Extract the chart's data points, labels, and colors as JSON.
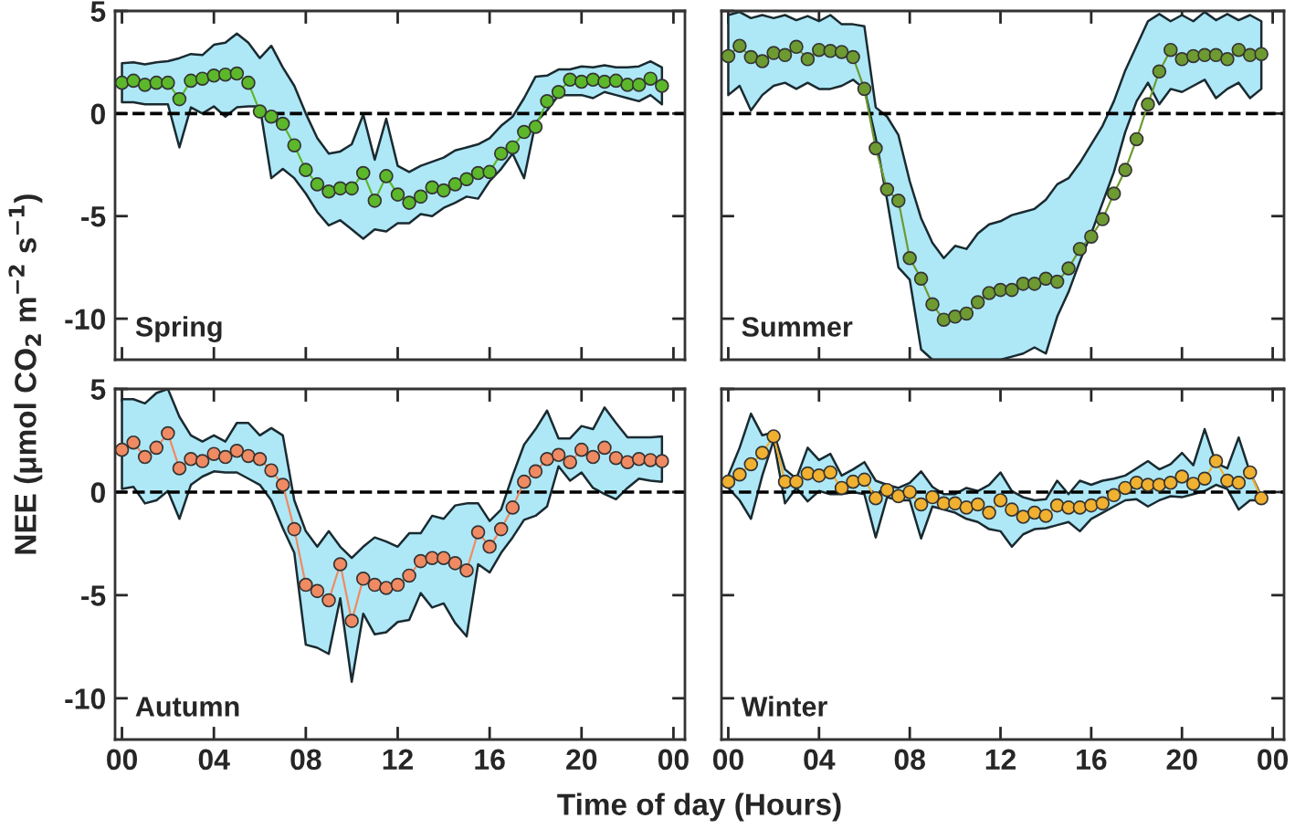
{
  "chart_data": [
    {
      "type": "line",
      "ylabel": "NEE (μmol CO$_{2}$ m$^{−2}$ s$^{−1}$)",
      "annotations": [
        "Spring"
      ],
      "tick_labels": "y",
      "marker": "circle",
      "line_style": "solid",
      "grid": false,
      "legend": false,
      "xlim": [
        -0.3,
        24.5
      ],
      "xticks": [
        {
          "value": 0,
          "label": null
        },
        {
          "value": 4,
          "label": null
        },
        {
          "value": 8,
          "label": null
        },
        {
          "value": 12,
          "label": null
        },
        {
          "value": 16,
          "label": null
        },
        {
          "value": 20,
          "label": null
        },
        {
          "value": 24,
          "label": null
        }
      ],
      "ylim": [
        -12,
        5
      ],
      "yticks": [
        5,
        0,
        -5,
        -10
      ],
      "ref_lines": [
        {
          "axis": "y",
          "value": 0,
          "color": "#000000",
          "line_style": "dashed"
        }
      ],
      "series": [
        {
          "x": [
            0,
            0.5,
            1,
            1.5,
            2,
            2.5,
            3,
            3.5,
            4,
            4.5,
            5,
            5.5,
            6,
            6.5,
            7,
            7.5,
            8,
            8.5,
            9,
            9.5,
            10,
            10.5,
            11,
            11.5,
            12,
            12.5,
            13,
            13.5,
            14,
            14.5,
            15,
            15.5,
            16,
            16.5,
            17,
            17.5,
            18,
            18.5,
            19,
            19.5,
            20,
            20.5,
            21,
            21.5,
            22,
            22.5,
            23,
            23.5
          ],
          "color": "#5cb82a",
          "values": [
            1.5,
            1.6,
            1.4,
            1.5,
            1.5,
            0.7,
            1.6,
            1.7,
            1.85,
            1.9,
            1.95,
            1.5,
            0.1,
            -0.15,
            -0.5,
            -1.55,
            -2.75,
            -3.45,
            -3.8,
            -3.65,
            -3.65,
            -2.9,
            -4.25,
            -3.05,
            -3.95,
            -4.35,
            -4.05,
            -3.6,
            -3.75,
            -3.45,
            -3.2,
            -2.9,
            -2.85,
            -1.95,
            -1.65,
            -0.9,
            -0.65,
            0.6,
            1.05,
            1.65,
            1.55,
            1.65,
            1.55,
            1.6,
            1.4,
            1.4,
            1.7,
            1.35
          ],
          "upper": [
            2.45,
            2.5,
            2.4,
            2.5,
            2.55,
            2.7,
            2.9,
            2.85,
            3.35,
            3.45,
            3.9,
            3.45,
            2.7,
            3.3,
            2.25,
            1.35,
            0,
            -1.2,
            -1.95,
            -1.85,
            -1.5,
            -0.05,
            -2.25,
            -0.25,
            -2.55,
            -2.85,
            -2.55,
            -2.35,
            -2.15,
            -1.8,
            -1.65,
            -1.5,
            -1.2,
            -0.6,
            -0.15,
            0.75,
            1.8,
            1.85,
            2.15,
            2.15,
            2.3,
            2.25,
            2.35,
            2.25,
            2.25,
            2.3,
            2.55,
            2.25
          ],
          "lower": [
            0.55,
            0.55,
            0.45,
            0.45,
            0.45,
            -1.65,
            0.3,
            0,
            0.35,
            -0.15,
            0.3,
            0.35,
            0.35,
            -3.15,
            -2.7,
            -3.15,
            -3.9,
            -4.8,
            -5.45,
            -5.2,
            -5.65,
            -6.1,
            -5.65,
            -5.75,
            -5.35,
            -5.35,
            -4.9,
            -5.0,
            -4.6,
            -4.35,
            -4.05,
            -4.15,
            -3.3,
            -2.7,
            -1.95,
            -3.15,
            -0.45,
            0.15,
            0.9,
            0.9,
            0.9,
            0.75,
            1.05,
            0.9,
            0.75,
            0.6,
            0.9,
            0.45
          ]
        }
      ]
    },
    {
      "type": "line",
      "annotations": [
        "Summer"
      ],
      "tick_labels": false,
      "marker": "circle",
      "line_style": "solid",
      "grid": false,
      "legend": false,
      "xlim": [
        -0.3,
        24.5
      ],
      "xticks": [
        {
          "value": 0,
          "label": null
        },
        {
          "value": 4,
          "label": null
        },
        {
          "value": 8,
          "label": null
        },
        {
          "value": 12,
          "label": null
        },
        {
          "value": 16,
          "label": null
        },
        {
          "value": 20,
          "label": null
        },
        {
          "value": 24,
          "label": null
        }
      ],
      "ylim": [
        -12,
        5
      ],
      "yticks": [
        5,
        0,
        -5,
        -10
      ],
      "ref_lines": [
        {
          "axis": "y",
          "value": 0,
          "color": "#000000",
          "line_style": "dashed"
        }
      ],
      "series": [
        {
          "x": [
            0,
            0.5,
            1,
            1.5,
            2,
            2.5,
            3,
            3.5,
            4,
            4.5,
            5,
            5.5,
            6,
            6.5,
            7,
            7.5,
            8,
            8.5,
            9,
            9.5,
            10,
            10.5,
            11,
            11.5,
            12,
            12.5,
            13,
            13.5,
            14,
            14.5,
            15,
            15.5,
            16,
            16.5,
            17,
            17.5,
            18,
            18.5,
            19,
            19.5,
            20,
            20.5,
            21,
            21.5,
            22,
            22.5,
            23,
            23.5
          ],
          "color": "#6e9a32",
          "values": [
            2.8,
            3.3,
            2.75,
            2.55,
            2.95,
            2.85,
            3.25,
            2.65,
            3.1,
            3.05,
            3.0,
            2.75,
            1.2,
            -1.7,
            -3.7,
            -4.25,
            -7.05,
            -8.05,
            -9.3,
            -10.05,
            -9.9,
            -9.75,
            -9.2,
            -8.75,
            -8.6,
            -8.6,
            -8.3,
            -8.3,
            -8.05,
            -8.2,
            -7.55,
            -6.6,
            -6.0,
            -5.15,
            -3.9,
            -2.75,
            -1.25,
            0.45,
            2.05,
            3.1,
            2.65,
            2.8,
            2.85,
            2.85,
            2.65,
            3.1,
            2.85,
            2.9
          ],
          "upper": [
            4.8,
            4.95,
            4.65,
            4.8,
            4.65,
            4.8,
            4.55,
            4.75,
            4.5,
            4.8,
            4.35,
            4.35,
            4.25,
            0.3,
            -0.15,
            -1.05,
            -3.3,
            -5.1,
            -6.3,
            -7.05,
            -6.45,
            -6.6,
            -5.85,
            -5.4,
            -5.25,
            -4.95,
            -4.8,
            -4.65,
            -4.2,
            -3.45,
            -3.15,
            -2.4,
            -1.5,
            -0.6,
            0.6,
            2.1,
            3.3,
            4.5,
            4.85,
            4.5,
            4.8,
            4.5,
            4.95,
            4.55,
            4.85,
            4.55,
            4.8,
            4.5
          ],
          "lower": [
            0.9,
            1.35,
            0.15,
            0.9,
            1.35,
            1.5,
            1.2,
            1.5,
            1.2,
            1.2,
            1.35,
            1.65,
            1.2,
            -1.2,
            -4.2,
            -7.5,
            -8.1,
            -11.5,
            -12,
            -12,
            -12,
            -12,
            -12,
            -12,
            -12,
            -11.85,
            -11.7,
            -11.4,
            -11.7,
            -9.9,
            -8.7,
            -7.2,
            -5.85,
            -4.35,
            -2.85,
            -0.9,
            0.6,
            1.5,
            0.45,
            1.2,
            1.05,
            1.35,
            1.65,
            0.75,
            1.2,
            1.5,
            0.75,
            1.2
          ]
        }
      ]
    },
    {
      "type": "line",
      "xlabel": "Time of day (Hours)",
      "annotations": [
        "Autumn"
      ],
      "marker": "circle",
      "line_style": "solid",
      "grid": false,
      "legend": false,
      "xlim": [
        -0.3,
        24.5
      ],
      "xticks": [
        {
          "value": 0,
          "label": "00"
        },
        {
          "value": 4,
          "label": "04"
        },
        {
          "value": 8,
          "label": "08"
        },
        {
          "value": 12,
          "label": "12"
        },
        {
          "value": 16,
          "label": "16"
        },
        {
          "value": 20,
          "label": "20"
        },
        {
          "value": 24,
          "label": "00"
        }
      ],
      "ylim": [
        -12,
        5
      ],
      "yticks": [
        5,
        0,
        -5,
        -10
      ],
      "ref_lines": [
        {
          "axis": "y",
          "value": 0,
          "color": "#000000",
          "line_style": "dashed"
        }
      ],
      "series": [
        {
          "x": [
            0,
            0.5,
            1,
            1.5,
            2,
            2.5,
            3,
            3.5,
            4,
            4.5,
            5,
            5.5,
            6,
            6.5,
            7,
            7.5,
            8,
            8.5,
            9,
            9.5,
            10,
            10.5,
            11,
            11.5,
            12,
            12.5,
            13,
            13.5,
            14,
            14.5,
            15,
            15.5,
            16,
            16.5,
            17,
            17.5,
            18,
            18.5,
            19,
            19.5,
            20,
            20.5,
            21,
            21.5,
            22,
            22.5,
            23,
            23.5
          ],
          "color": "#f08a62",
          "values": [
            2.05,
            2.4,
            1.7,
            2.15,
            2.85,
            1.15,
            1.6,
            1.5,
            1.85,
            1.7,
            2.0,
            1.75,
            1.6,
            1.05,
            0.35,
            -1.8,
            -4.5,
            -4.8,
            -5.25,
            -3.5,
            -6.25,
            -4.2,
            -4.5,
            -4.65,
            -4.5,
            -4.05,
            -3.35,
            -3.2,
            -3.2,
            -3.45,
            -3.8,
            -1.95,
            -2.65,
            -1.8,
            -0.75,
            0.5,
            1.0,
            1.6,
            1.8,
            1.45,
            2.05,
            1.7,
            2.15,
            1.65,
            1.45,
            1.6,
            1.55,
            1.5
          ],
          "upper": [
            4.5,
            4.5,
            4.3,
            4.8,
            5.0,
            3.65,
            2.75,
            2.45,
            2.75,
            2.45,
            3.35,
            3.35,
            2.75,
            3.1,
            2.75,
            -0.4,
            -1.9,
            -2.65,
            -1.9,
            -2.65,
            -3.2,
            -2.65,
            -2.2,
            -2.4,
            -2.65,
            -2.0,
            -2.0,
            -1.15,
            -1.3,
            -0.65,
            -0.55,
            -0.55,
            -1.4,
            -0.85,
            0.8,
            2.3,
            3.05,
            3.95,
            2.6,
            2.6,
            3.2,
            3.05,
            4.1,
            3.35,
            2.65,
            2.65,
            2.65,
            2.7
          ],
          "lower": [
            0.15,
            0.25,
            -0.55,
            -0.4,
            0.05,
            -1.3,
            0.35,
            0.75,
            1.0,
            0.95,
            0.95,
            0.65,
            0.35,
            -0.4,
            -1.75,
            -2.95,
            -7.4,
            -7.55,
            -7.85,
            -5.15,
            -9.2,
            -5.9,
            -6.9,
            -6.8,
            -6.3,
            -6.2,
            -4.9,
            -5.6,
            -5.4,
            -6.35,
            -7.0,
            -3.5,
            -3.9,
            -2.95,
            -2.2,
            -1.35,
            -1.15,
            -0.7,
            1.25,
            0.55,
            0.95,
            0.2,
            -0.1,
            -0.35,
            0.2,
            0.65,
            0.55,
            0.5
          ]
        }
      ]
    },
    {
      "type": "line",
      "annotations": [
        "Winter"
      ],
      "tick_labels": "x",
      "marker": "circle",
      "line_style": "solid",
      "grid": false,
      "legend": false,
      "xlim": [
        -0.3,
        24.5
      ],
      "xticks": [
        {
          "value": 0,
          "label": "00"
        },
        {
          "value": 4,
          "label": "04"
        },
        {
          "value": 8,
          "label": "08"
        },
        {
          "value": 12,
          "label": "12"
        },
        {
          "value": 16,
          "label": "16"
        },
        {
          "value": 20,
          "label": "20"
        },
        {
          "value": 24,
          "label": "00"
        }
      ],
      "ylim": [
        -12,
        5
      ],
      "yticks": [
        5,
        0,
        -5,
        -10
      ],
      "ref_lines": [
        {
          "axis": "y",
          "value": 0,
          "color": "#000000",
          "line_style": "dashed"
        }
      ],
      "series": [
        {
          "x": [
            0,
            0.5,
            1,
            1.5,
            2,
            2.5,
            3,
            3.5,
            4,
            4.5,
            5,
            5.5,
            6,
            6.5,
            7,
            7.5,
            8,
            8.5,
            9,
            9.5,
            10,
            10.5,
            11,
            11.5,
            12,
            12.5,
            13,
            13.5,
            14,
            14.5,
            15,
            15.5,
            16,
            16.5,
            17,
            17.5,
            18,
            18.5,
            19,
            19.5,
            20,
            20.5,
            21,
            21.5,
            22,
            22.5,
            23,
            23.5
          ],
          "color": "#f0b030",
          "values": [
            0.5,
            0.85,
            1.35,
            1.9,
            2.7,
            0.5,
            0.5,
            0.9,
            0.8,
            0.95,
            0.2,
            0.5,
            0.6,
            -0.3,
            0.1,
            -0.2,
            0,
            -0.6,
            -0.25,
            -0.55,
            -0.55,
            -0.75,
            -0.6,
            -1.0,
            -0.4,
            -0.85,
            -1.2,
            -1.0,
            -1.15,
            -0.65,
            -0.75,
            -0.75,
            -0.65,
            -0.55,
            -0.15,
            0.2,
            0.45,
            0.35,
            0.35,
            0.45,
            0.75,
            0.4,
            0.65,
            1.5,
            0.55,
            0.45,
            0.95,
            -0.3
          ],
          "upper": [
            0.8,
            2.15,
            3.8,
            2.75,
            2.9,
            1.1,
            0.65,
            2.15,
            1.55,
            1.85,
            0.8,
            1.1,
            1.45,
            0.55,
            0.35,
            0.2,
            0.45,
            1.0,
            0.25,
            -0.1,
            -0.1,
            0.2,
            0.05,
            0.35,
            0.95,
            0.05,
            -0.25,
            -0.4,
            -0.35,
            0.55,
            -0.1,
            0.55,
            0.35,
            0.55,
            0.65,
            0.8,
            1.15,
            1.5,
            1.1,
            1.35,
            1.9,
            1.3,
            3.05,
            1.4,
            1.15,
            2.65,
            0.95,
            -0.2
          ],
          "lower": [
            0.2,
            -0.4,
            -1.3,
            0.8,
            2.5,
            -0.55,
            0.2,
            -0.45,
            0.05,
            -0.1,
            -0.1,
            0,
            -0.1,
            -2.2,
            -0.25,
            -0.4,
            -0.4,
            -2.25,
            -0.7,
            -0.85,
            -1.0,
            -1.3,
            -1.45,
            -1.8,
            -1.9,
            -2.65,
            -2.05,
            -1.8,
            -1.75,
            -1.6,
            -1.45,
            -1.9,
            -1.3,
            -1.0,
            -0.7,
            -0.4,
            -0.35,
            -0.7,
            -0.4,
            -0.2,
            -0.25,
            -0.1,
            0.05,
            0.35,
            0.15,
            -0.85,
            -0.4,
            -0.4
          ]
        }
      ]
    }
  ]
}
